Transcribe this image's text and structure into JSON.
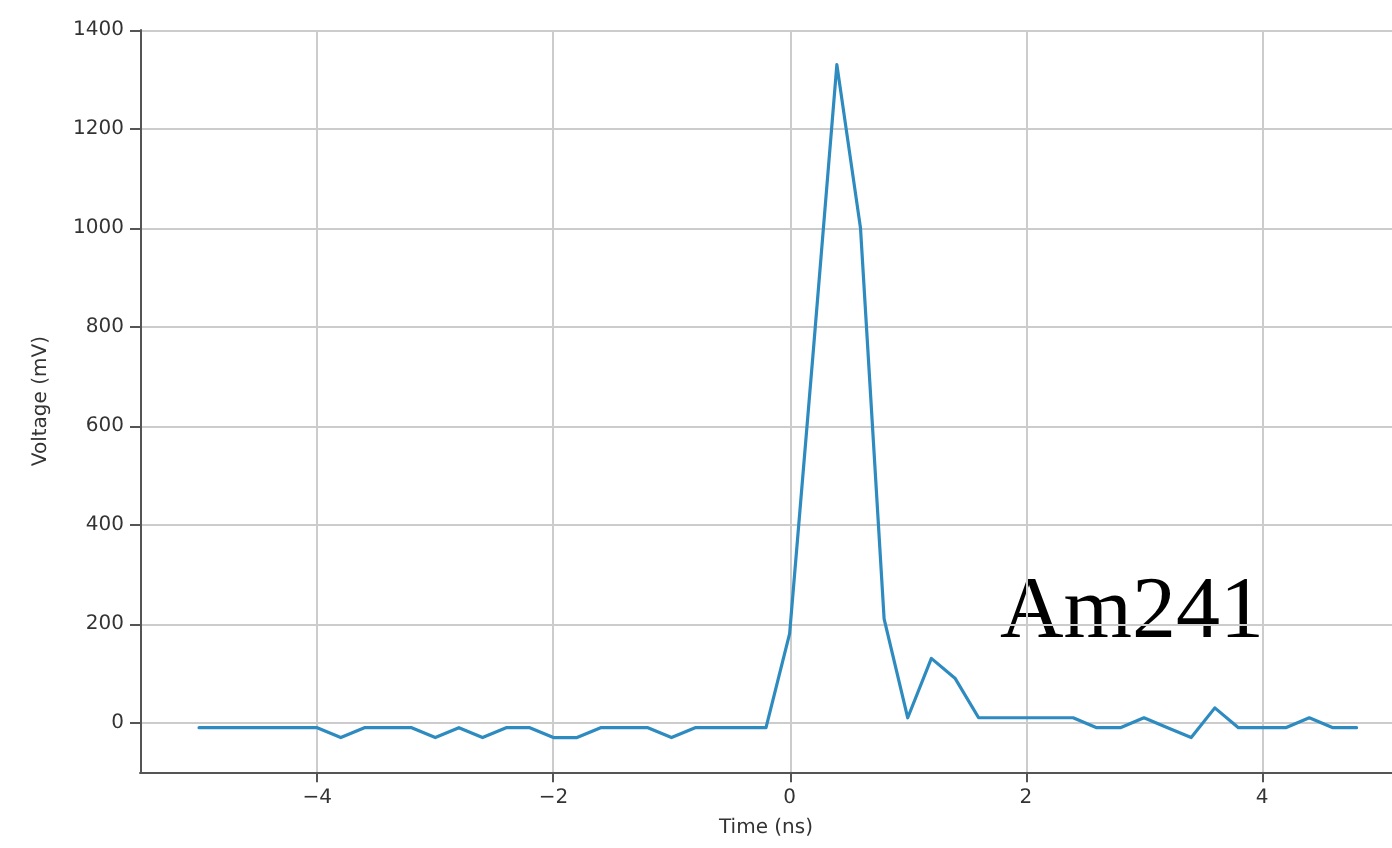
{
  "chart_data": {
    "type": "line",
    "xlabel": "Time (ns)",
    "ylabel": "Voltage (mV)",
    "annotations": [
      "Am241"
    ],
    "x": [
      -5,
      -4.8,
      -4.6,
      -4.4,
      -4.2,
      -4,
      -3.8,
      -3.6,
      -3.4,
      -3.2,
      -3,
      -2.8,
      -2.6,
      -2.4,
      -2.2,
      -2,
      -1.8,
      -1.6,
      -1.4,
      -1.2,
      -1,
      -0.8,
      -0.6,
      -0.4,
      -0.2,
      0,
      0.2,
      0.4,
      0.6,
      0.8,
      1,
      1.2,
      1.4,
      1.6,
      1.8,
      2,
      2.2,
      2.4,
      2.6,
      2.8,
      3,
      3.2,
      3.4,
      3.6,
      3.8,
      4,
      4.2,
      4.4,
      4.6,
      4.8
    ],
    "series": [
      {
        "color": "#2e8bc0",
        "values": [
          -10,
          -10,
          -10,
          -10,
          -10,
          -10,
          -30,
          -10,
          -10,
          -10,
          -30,
          -10,
          -30,
          -10,
          -10,
          -30,
          -30,
          -10,
          -10,
          -10,
          -30,
          -10,
          -10,
          -10,
          -10,
          180,
          750,
          1330,
          1000,
          210,
          10,
          130,
          90,
          10,
          10,
          10,
          10,
          10,
          -10,
          -10,
          10,
          -10,
          -30,
          30,
          -10,
          -10,
          -10,
          10,
          -10,
          -10
        ]
      }
    ],
    "xlim": [
      -5.5,
      5.1
    ],
    "ylim": [
      -100,
      1400
    ],
    "xticks": [
      {
        "value": -4,
        "label": "−4"
      },
      {
        "value": -2,
        "label": "−2"
      },
      0,
      2,
      4
    ],
    "yticks": [
      0,
      200,
      400,
      600,
      800,
      1000,
      1200,
      1400
    ],
    "grid": true,
    "marker": "none",
    "line_style": "solid"
  }
}
